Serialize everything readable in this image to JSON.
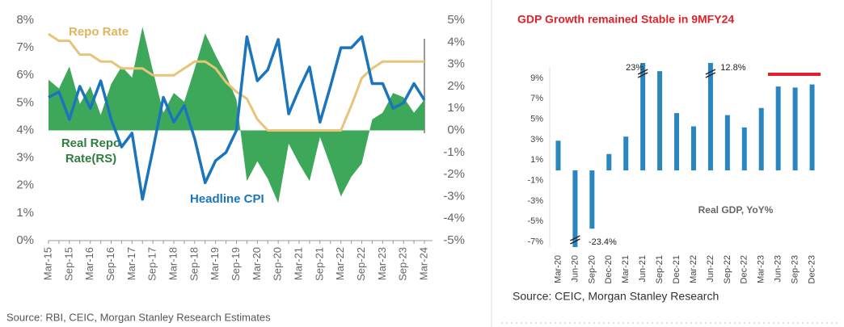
{
  "chart_data": [
    {
      "type": "line",
      "categories": [
        "Mar-15",
        null,
        "Sep-15",
        null,
        "Mar-16",
        null,
        "Sep-16",
        null,
        "Mar-17",
        null,
        "Sep-17",
        null,
        "Mar-18",
        null,
        "Sep-18",
        null,
        "Mar-19",
        null,
        "Sep-19",
        null,
        "Mar-20",
        null,
        "Sep-20",
        null,
        "Mar-21",
        null,
        "Sep-21",
        null,
        "Mar-22",
        null,
        "Sep-22",
        null,
        "Mar-23",
        null,
        "Sep-23",
        null,
        "Mar-24"
      ],
      "series": [
        {
          "name": "Real Repo Rate(RS)",
          "color": "#3da85a",
          "axis": "y2",
          "kind": "area",
          "values": [
            2.3,
            1.9,
            2.9,
            1.2,
            2.0,
            0.7,
            2.1,
            2.9,
            2.4,
            4.7,
            2.7,
            0.8,
            1.7,
            1.3,
            2.8,
            4.4,
            3.4,
            2.5,
            1.4,
            -2.3,
            -1.4,
            -2.2,
            -3.3,
            -0.6,
            -1.5,
            -2.3,
            -0.3,
            -1.6,
            -3.0,
            -2.1,
            -1.5,
            0.5,
            0.8,
            1.7,
            1.5,
            0.8,
            1.4
          ]
        },
        {
          "name": "Repo Rate",
          "color": "#e8c47a",
          "kind": "line",
          "values": [
            7.5,
            7.25,
            7.25,
            6.75,
            6.75,
            6.5,
            6.5,
            6.25,
            6.25,
            6.25,
            6.0,
            6.0,
            6.0,
            6.25,
            6.5,
            6.5,
            6.25,
            5.75,
            5.4,
            5.15,
            4.4,
            4.0,
            4.0,
            4.0,
            4.0,
            4.0,
            4.0,
            4.0,
            4.0,
            4.9,
            5.9,
            6.25,
            6.5,
            6.5,
            6.5,
            6.5,
            6.5
          ]
        },
        {
          "name": "Headline CPI",
          "color": "#1a75bc",
          "kind": "line",
          "values": [
            5.2,
            5.4,
            4.4,
            5.6,
            4.8,
            5.8,
            4.4,
            3.4,
            3.9,
            1.5,
            3.3,
            5.2,
            4.3,
            4.9,
            3.7,
            2.1,
            2.9,
            3.2,
            4.0,
            7.4,
            5.8,
            6.2,
            7.3,
            4.6,
            5.5,
            6.3,
            4.3,
            5.6,
            7.0,
            7.0,
            7.4,
            5.7,
            5.7,
            4.8,
            5.0,
            5.7,
            5.1
          ]
        }
      ],
      "ylim": [
        0,
        8
      ],
      "yticks": [
        {
          "value": 0,
          "label": "0%"
        },
        {
          "value": 1,
          "label": "1%"
        },
        {
          "value": 2,
          "label": "2%"
        },
        {
          "value": 3,
          "label": "3%"
        },
        {
          "value": 4,
          "label": "4%"
        },
        {
          "value": 5,
          "label": "5%"
        },
        {
          "value": 6,
          "label": "6%"
        },
        {
          "value": 7,
          "label": "7%"
        },
        {
          "value": 8,
          "label": "8%"
        }
      ],
      "y2lim": [
        -5,
        5
      ],
      "y2ticks": [
        {
          "value": -5,
          "label": "-5%"
        },
        {
          "value": -4,
          "label": "-4%"
        },
        {
          "value": -3,
          "label": "-3%"
        },
        {
          "value": -2,
          "label": "-2%"
        },
        {
          "value": -1,
          "label": "-1%"
        },
        {
          "value": 0,
          "label": "0%"
        },
        {
          "value": 1,
          "label": "1%"
        },
        {
          "value": 2,
          "label": "2%"
        },
        {
          "value": 3,
          "label": "3%"
        },
        {
          "value": 4,
          "label": "4%"
        },
        {
          "value": 5,
          "label": "5%"
        }
      ],
      "source": "Source: RBI, CEIC, Morgan Stanley Research Estimates"
    },
    {
      "type": "bar",
      "title": "GDP Growth remained Stable in 9MFY24",
      "categories": [
        "Mar-20",
        "Jun-20",
        "Sep-20",
        "Dec-20",
        "Mar-21",
        "Jun-21",
        "Sep-21",
        "Dec-21",
        "Mar-22",
        "Jun-22",
        "Sep-22",
        "Dec-22",
        "Mar-23",
        "Jun-23",
        "Sep-23",
        "Dec-23"
      ],
      "values": [
        2.9,
        -23.4,
        -5.7,
        1.6,
        3.3,
        23,
        9.7,
        5.6,
        4.3,
        12.8,
        5.4,
        4.2,
        6.1,
        8.2,
        8.1,
        8.4
      ],
      "value_labels": [
        null,
        "-23.4%",
        null,
        null,
        null,
        "23%",
        null,
        null,
        null,
        "12.8%",
        null,
        null,
        null,
        null,
        null,
        null
      ],
      "color": "#2a86bf",
      "ylim": [
        -7.5,
        10.5
      ],
      "yticks": [
        {
          "value": -7,
          "label": "-7%"
        },
        {
          "value": -5,
          "label": "-5%"
        },
        {
          "value": -3,
          "label": "-3%"
        },
        {
          "value": -1,
          "label": "-1%"
        },
        {
          "value": 1,
          "label": "1%"
        },
        {
          "value": 3,
          "label": "3%"
        },
        {
          "value": 5,
          "label": "5%"
        },
        {
          "value": 7,
          "label": "7%"
        },
        {
          "value": 9,
          "label": "9%"
        }
      ],
      "annotation": "Real GDP, YoY%",
      "source": "Source: CEIC, Morgan Stanley Research"
    }
  ]
}
